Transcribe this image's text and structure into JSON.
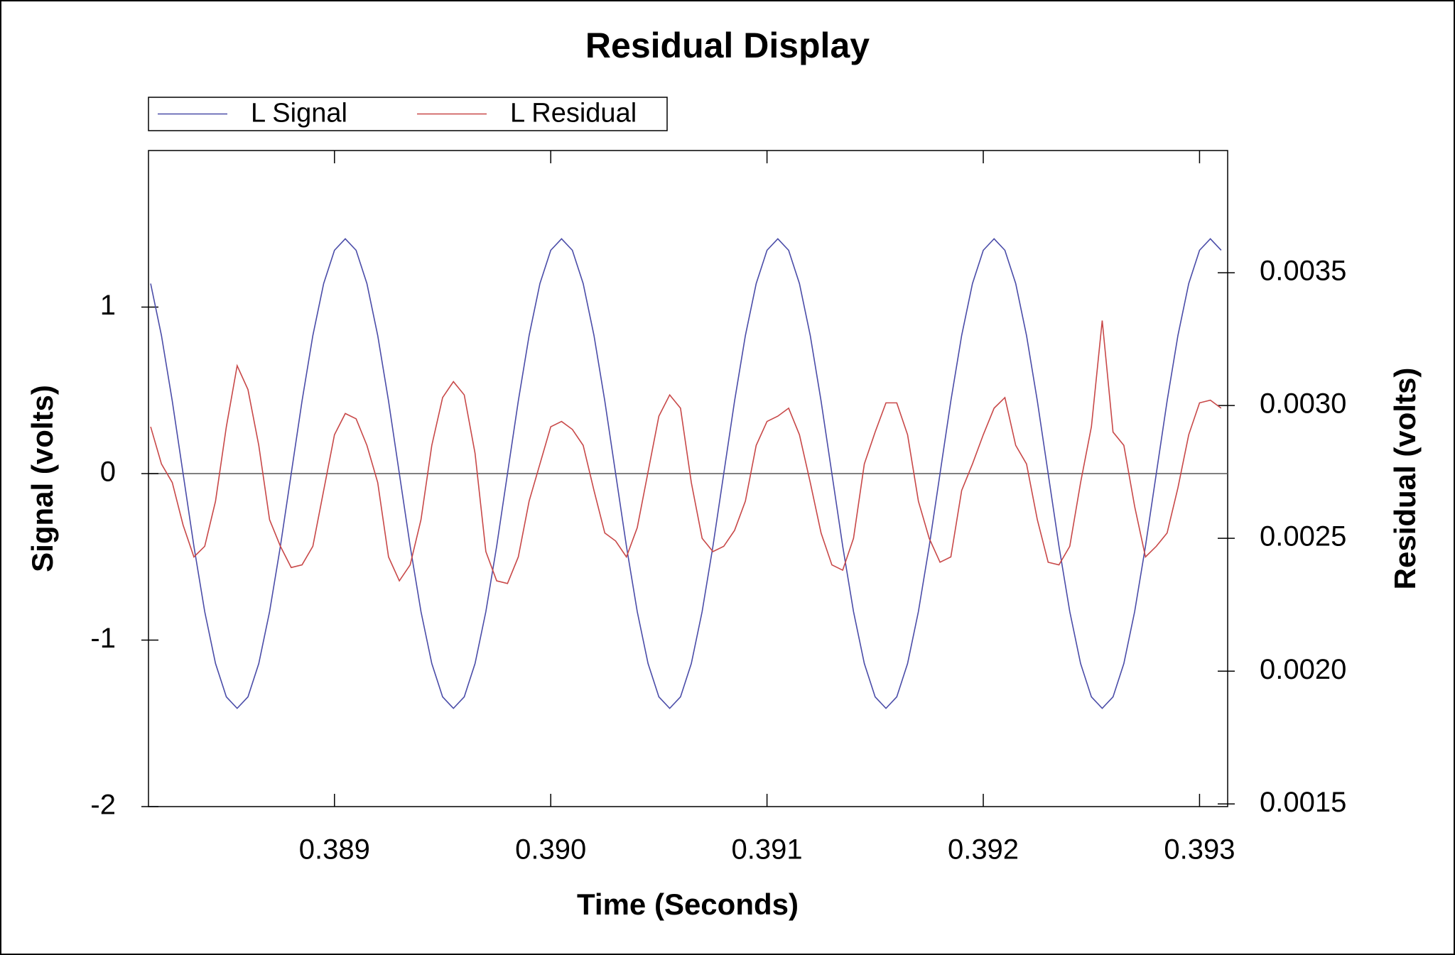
{
  "chart_data": {
    "type": "line",
    "title": "Residual Display",
    "xlabel": "Time (Seconds)",
    "ylabel": "Signal (volts)",
    "y2label": "Residual (volts)",
    "legend": "top-left",
    "zero_line": true,
    "xlim": [
      0.38814,
      0.39313
    ],
    "xticks": [
      0.389,
      {
        "value": 0.39,
        "label": "0.390"
      },
      0.391,
      0.392,
      0.393
    ],
    "ylim": [
      -2,
      1.94
    ],
    "yticks": [
      -2,
      -1,
      0,
      1
    ],
    "y2lim": [
      0.00149,
      0.00396
    ],
    "y2ticks": [
      0.0015,
      {
        "value": 0.002,
        "label": "0.0020"
      },
      0.0025,
      {
        "value": 0.003,
        "label": "0.0030"
      },
      0.0035
    ],
    "x": [
      0.38815,
      0.3882,
      0.38825,
      0.3883,
      0.38835,
      0.3884,
      0.38845,
      0.3885,
      0.38855,
      0.3886,
      0.38865,
      0.3887,
      0.38875,
      0.3888,
      0.38885,
      0.3889,
      0.38895,
      0.389,
      0.38905,
      0.3891,
      0.38915,
      0.3892,
      0.38925,
      0.3893,
      0.38935,
      0.3894,
      0.38945,
      0.3895,
      0.38955,
      0.3896,
      0.38965,
      0.3897,
      0.38975,
      0.3898,
      0.38985,
      0.3899,
      0.38995,
      0.39,
      0.39005,
      0.3901,
      0.39015,
      0.3902,
      0.39025,
      0.3903,
      0.39035,
      0.3904,
      0.39045,
      0.3905,
      0.39055,
      0.3906,
      0.39065,
      0.3907,
      0.39075,
      0.3908,
      0.39085,
      0.3909,
      0.39095,
      0.391,
      0.39105,
      0.3911,
      0.39115,
      0.3912,
      0.39125,
      0.3913,
      0.39135,
      0.3914,
      0.39145,
      0.3915,
      0.39155,
      0.3916,
      0.39165,
      0.3917,
      0.39175,
      0.3918,
      0.39185,
      0.3919,
      0.39195,
      0.392,
      0.39205,
      0.3921,
      0.39215,
      0.3922,
      0.39225,
      0.3923,
      0.39235,
      0.3924,
      0.39245,
      0.3925,
      0.39255,
      0.3926,
      0.39265,
      0.3927,
      0.39275,
      0.3928,
      0.39285,
      0.3929,
      0.39295,
      0.393,
      0.39305,
      0.3931
    ],
    "series": [
      {
        "name": "L Signal",
        "color": "#4a4ca8",
        "axis": "y",
        "values": [
          1.141,
          0.829,
          0.436,
          0,
          -0.436,
          -0.829,
          -1.141,
          -1.341,
          -1.41,
          -1.341,
          -1.141,
          -0.829,
          -0.436,
          0,
          0.436,
          0.829,
          1.141,
          1.341,
          1.41,
          1.341,
          1.141,
          0.829,
          0.436,
          0,
          -0.436,
          -0.829,
          -1.141,
          -1.341,
          -1.41,
          -1.341,
          -1.141,
          -0.829,
          -0.436,
          0,
          0.436,
          0.829,
          1.141,
          1.341,
          1.41,
          1.341,
          1.141,
          0.829,
          0.436,
          0,
          -0.436,
          -0.829,
          -1.141,
          -1.341,
          -1.41,
          -1.341,
          -1.141,
          -0.829,
          -0.436,
          0,
          0.436,
          0.829,
          1.141,
          1.341,
          1.41,
          1.341,
          1.141,
          0.829,
          0.436,
          0,
          -0.436,
          -0.829,
          -1.141,
          -1.341,
          -1.41,
          -1.341,
          -1.141,
          -0.829,
          -0.436,
          0,
          0.436,
          0.829,
          1.141,
          1.341,
          1.41,
          1.341,
          1.141,
          0.829,
          0.436,
          0,
          -0.436,
          -0.829,
          -1.141,
          -1.341,
          -1.41,
          -1.341,
          -1.141,
          -0.829,
          -0.436,
          0,
          0.436,
          0.829,
          1.141,
          1.341,
          1.41,
          1.341
        ]
      },
      {
        "name": "L Residual",
        "color": "#c84848",
        "axis": "y2",
        "values": [
          0.00292,
          0.00278,
          0.00271,
          0.00255,
          0.00243,
          0.00247,
          0.00264,
          0.00292,
          0.00315,
          0.00306,
          0.00285,
          0.00257,
          0.00247,
          0.00239,
          0.0024,
          0.00247,
          0.00268,
          0.00289,
          0.00297,
          0.00295,
          0.00285,
          0.00271,
          0.00243,
          0.00234,
          0.0024,
          0.00257,
          0.00285,
          0.00303,
          0.00309,
          0.00304,
          0.00282,
          0.00245,
          0.00234,
          0.00233,
          0.00243,
          0.00264,
          0.00278,
          0.00292,
          0.00294,
          0.00291,
          0.00285,
          0.00268,
          0.00252,
          0.00249,
          0.00243,
          0.00254,
          0.00275,
          0.00296,
          0.00304,
          0.00299,
          0.00271,
          0.0025,
          0.00245,
          0.00247,
          0.00253,
          0.00264,
          0.00285,
          0.00294,
          0.00296,
          0.00299,
          0.00289,
          0.00271,
          0.00252,
          0.0024,
          0.00238,
          0.0025,
          0.00278,
          0.0029,
          0.00301,
          0.00301,
          0.00289,
          0.00264,
          0.0025,
          0.00241,
          0.00243,
          0.00268,
          0.00278,
          0.00289,
          0.00299,
          0.00303,
          0.00285,
          0.00278,
          0.00257,
          0.00241,
          0.0024,
          0.00247,
          0.00271,
          0.00292,
          0.00332,
          0.0029,
          0.00285,
          0.00262,
          0.00243,
          0.00247,
          0.00252,
          0.00269,
          0.00289,
          0.00301,
          0.00302,
          0.00299
        ]
      }
    ]
  }
}
